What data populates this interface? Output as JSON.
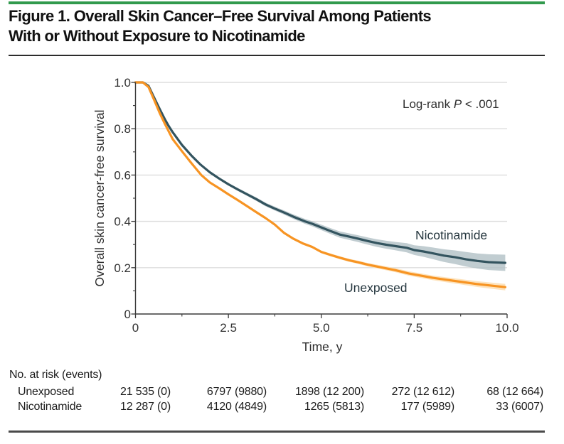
{
  "figure": {
    "title_line1": "Figure 1. Overall Skin Cancer–Free Survival Among Patients",
    "title_line2": "With or Without Exposure to Nicotinamide",
    "accent_color": "#319a4d"
  },
  "chart_data": {
    "type": "line",
    "subtype": "kaplan-meier-survival",
    "title": "",
    "xlabel": "Time, y",
    "ylabel": "Overall skin cancer-free survival",
    "xlim": [
      0,
      10
    ],
    "ylim": [
      0,
      1.0
    ],
    "grid": true,
    "grid_color": "#dddddd",
    "axis_color": "#3a3a3a",
    "text_color": "#333333",
    "legend": "inline-labels",
    "annotation": {
      "prefix": "Log-rank ",
      "stat": "P",
      "suffix": " < .001"
    },
    "x_ticks": [
      {
        "label": "0",
        "value": 0
      },
      {
        "label": "2.5",
        "value": 2.5
      },
      {
        "label": "5.0",
        "value": 5
      },
      {
        "label": "7.5",
        "value": 7.5
      },
      {
        "label": "10.0",
        "value": 10
      }
    ],
    "x_minor_ticks": [
      1.25,
      3.75,
      6.25,
      8.75
    ],
    "y_ticks": [
      {
        "label": "1.0",
        "value": 1.0
      },
      {
        "label": "0.8",
        "value": 0.8
      },
      {
        "label": "0.6",
        "value": 0.6
      },
      {
        "label": "0.4",
        "value": 0.4
      },
      {
        "label": "0.2",
        "value": 0.2
      },
      {
        "label": "0",
        "value": 0
      }
    ],
    "y_minor_ticks": [
      0.1,
      0.3,
      0.5,
      0.7,
      0.9
    ],
    "series": [
      {
        "name": "Nicotinamide",
        "color": "#33545f",
        "band_color": "#b2c0c6",
        "label_color": "#26373f",
        "points": [
          [
            0,
            1.0
          ],
          [
            0.2,
            1.0
          ],
          [
            0.35,
            0.985
          ],
          [
            0.5,
            0.935
          ],
          [
            0.65,
            0.885
          ],
          [
            0.8,
            0.838
          ],
          [
            0.9,
            0.81
          ],
          [
            1.0,
            0.785
          ],
          [
            1.25,
            0.73
          ],
          [
            1.5,
            0.685
          ],
          [
            1.75,
            0.645
          ],
          [
            2.0,
            0.612
          ],
          [
            2.25,
            0.585
          ],
          [
            2.5,
            0.56
          ],
          [
            2.75,
            0.538
          ],
          [
            3.0,
            0.517
          ],
          [
            3.25,
            0.496
          ],
          [
            3.5,
            0.473
          ],
          [
            3.75,
            0.455
          ],
          [
            4.0,
            0.438
          ],
          [
            4.25,
            0.42
          ],
          [
            4.56,
            0.4
          ],
          [
            4.75,
            0.39
          ],
          [
            5.0,
            0.374
          ],
          [
            5.25,
            0.358
          ],
          [
            5.5,
            0.343
          ],
          [
            5.75,
            0.334
          ],
          [
            6.0,
            0.325
          ],
          [
            6.25,
            0.315
          ],
          [
            6.5,
            0.306
          ],
          [
            6.75,
            0.299
          ],
          [
            7.0,
            0.293
          ],
          [
            7.3,
            0.286
          ],
          [
            7.5,
            0.276
          ],
          [
            7.75,
            0.27
          ],
          [
            8.0,
            0.262
          ],
          [
            8.3,
            0.252
          ],
          [
            8.6,
            0.245
          ],
          [
            8.9,
            0.236
          ],
          [
            9.2,
            0.229
          ],
          [
            9.5,
            0.224
          ],
          [
            9.95,
            0.221
          ]
        ],
        "ci_halfwidth": [
          [
            0,
            0.003
          ],
          [
            2,
            0.005
          ],
          [
            3,
            0.007
          ],
          [
            4,
            0.009
          ],
          [
            5,
            0.012
          ],
          [
            6,
            0.015
          ],
          [
            7,
            0.018
          ],
          [
            7.5,
            0.021
          ],
          [
            8,
            0.025
          ],
          [
            8.5,
            0.029
          ],
          [
            9,
            0.032
          ],
          [
            9.5,
            0.034
          ],
          [
            9.95,
            0.035
          ]
        ]
      },
      {
        "name": "Unexposed",
        "color": "#f79423",
        "band_color": "#fcdcac",
        "label_color": "#26373f",
        "points": [
          [
            0,
            1.0
          ],
          [
            0.2,
            1.0
          ],
          [
            0.35,
            0.98
          ],
          [
            0.5,
            0.925
          ],
          [
            0.65,
            0.868
          ],
          [
            0.8,
            0.818
          ],
          [
            1.0,
            0.755
          ],
          [
            1.25,
            0.703
          ],
          [
            1.5,
            0.652
          ],
          [
            1.77,
            0.6
          ],
          [
            2.0,
            0.568
          ],
          [
            2.25,
            0.543
          ],
          [
            2.5,
            0.517
          ],
          [
            2.75,
            0.492
          ],
          [
            3.0,
            0.466
          ],
          [
            3.25,
            0.44
          ],
          [
            3.5,
            0.414
          ],
          [
            3.75,
            0.386
          ],
          [
            4.0,
            0.35
          ],
          [
            4.25,
            0.325
          ],
          [
            4.5,
            0.305
          ],
          [
            4.75,
            0.29
          ],
          [
            5.0,
            0.268
          ],
          [
            5.25,
            0.255
          ],
          [
            5.5,
            0.243
          ],
          [
            5.75,
            0.232
          ],
          [
            6.0,
            0.223
          ],
          [
            6.25,
            0.213
          ],
          [
            6.5,
            0.205
          ],
          [
            6.75,
            0.197
          ],
          [
            7.0,
            0.189
          ],
          [
            7.35,
            0.175
          ],
          [
            7.7,
            0.165
          ],
          [
            8.0,
            0.156
          ],
          [
            8.4,
            0.147
          ],
          [
            8.8,
            0.138
          ],
          [
            9.2,
            0.129
          ],
          [
            9.6,
            0.122
          ],
          [
            9.95,
            0.116
          ]
        ],
        "ci_halfwidth": [
          [
            0,
            0.002
          ],
          [
            3,
            0.004
          ],
          [
            5,
            0.006
          ],
          [
            6,
            0.007
          ],
          [
            7,
            0.009
          ],
          [
            8,
            0.01
          ],
          [
            9,
            0.012
          ],
          [
            9.95,
            0.014
          ]
        ]
      }
    ]
  },
  "risk_table": {
    "header": "No. at risk (events)",
    "rows": [
      {
        "label": "Unexposed",
        "values": [
          "21 535 (0)",
          "6797 (9880)",
          "1898 (12 200)",
          "272 (12 612)",
          "68 (12 664)"
        ]
      },
      {
        "label": "Nicotinamide",
        "values": [
          "12 287 (0)",
          "4120 (4849)",
          "1265 (5813)",
          "177 (5989)",
          "33 (6007)"
        ]
      }
    ]
  }
}
